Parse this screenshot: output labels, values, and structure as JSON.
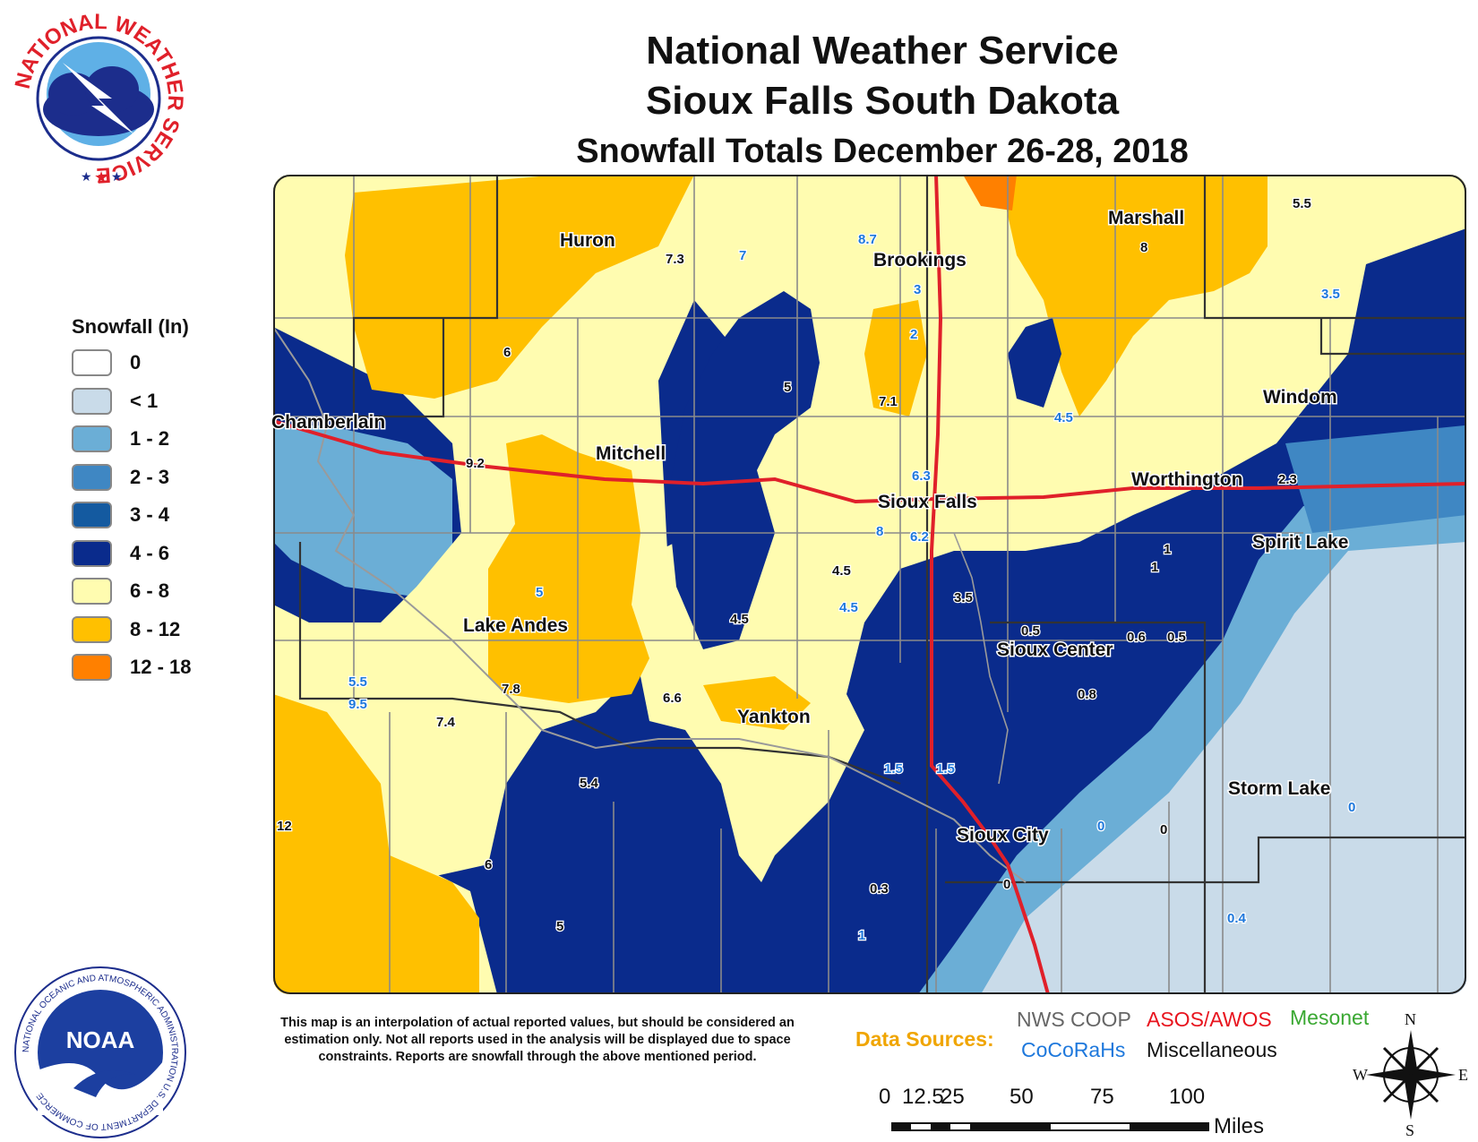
{
  "header": {
    "line1": "National Weather Service",
    "line2": "Sioux Falls South Dakota",
    "line3": "Snowfall Totals December 26-28, 2018"
  },
  "nws_logo": {
    "text": "NATIONAL WEATHER SERVICE",
    "icon": "nws-logo-icon"
  },
  "noaa_logo": {
    "text": "NOAA",
    "ring_text": "NATIONAL OCEANIC AND ATMOSPHERIC ADMINISTRATION U.S. DEPARTMENT OF COMMERCE",
    "icon": "noaa-logo-icon"
  },
  "legend": {
    "title": "Snowfall (In)",
    "items": [
      {
        "label": "0",
        "color": "#ffffff"
      },
      {
        "label": "< 1",
        "color": "#c9dbe9"
      },
      {
        "label": "1 - 2",
        "color": "#6baed6"
      },
      {
        "label": "2 - 3",
        "color": "#3f87c3"
      },
      {
        "label": "3 - 4",
        "color": "#145aa0"
      },
      {
        "label": "4 - 6",
        "color": "#0a2b8c"
      },
      {
        "label": "6 - 8",
        "color": "#fffcb0"
      },
      {
        "label": "8 - 12",
        "color": "#ffc000"
      },
      {
        "label": "12 - 18",
        "color": "#ff8000"
      }
    ]
  },
  "cities": [
    "Huron",
    "Brookings",
    "Marshall",
    "Chamberlain",
    "Mitchell",
    "Sioux Falls",
    "Worthington",
    "Windom",
    "Spirit Lake",
    "Lake Andes",
    "Sioux Center",
    "Yankton",
    "Storm Lake",
    "Sioux City"
  ],
  "reports": [
    "7.3",
    "7",
    "8.7",
    "3",
    "2",
    "8",
    "5.5",
    "3.5",
    "6",
    "5",
    "7.1",
    "4.5",
    "9.2",
    "6.3",
    "2.3",
    "8",
    "6.2",
    "1",
    "1",
    "4.5",
    "4.5",
    "4.5",
    "5",
    "3.5",
    "0.5",
    "0.6",
    "0.5",
    "5.5",
    "9.5",
    "7.8",
    "6.6",
    "0.8",
    "7.4",
    "1.5",
    "1.5",
    "5.4",
    "0",
    "0",
    "0",
    "12",
    "6",
    "0.3",
    "0",
    "5",
    "1",
    "0.4"
  ],
  "disclaimer": "This map is an interpolation of actual reported values, but should be considered an estimation only. Not all reports used in the analysis will be displayed due to space constraints. Reports are snowfall through the above mentioned period.",
  "sources": {
    "label": "Data Sources:",
    "items": [
      {
        "label": "NWS COOP",
        "color": "#666666"
      },
      {
        "label": "ASOS/AWOS",
        "color": "#e8141e"
      },
      {
        "label": "Mesonet",
        "color": "#3aa832"
      },
      {
        "label": "CoCoRaHs",
        "color": "#1e78dc"
      },
      {
        "label": "Miscellaneous",
        "color": "#111111"
      }
    ],
    "label_color": "#f0a500"
  },
  "scale": {
    "ticks": [
      "0",
      "12.5",
      "25",
      "50",
      "75",
      "100"
    ],
    "unit": "Miles"
  },
  "compass": {
    "n": "N",
    "s": "S",
    "e": "E",
    "w": "W"
  },
  "colors": {
    "interstate": "#e0202a",
    "county_lines": "#8a8a8a",
    "state_lines": "#333333"
  }
}
